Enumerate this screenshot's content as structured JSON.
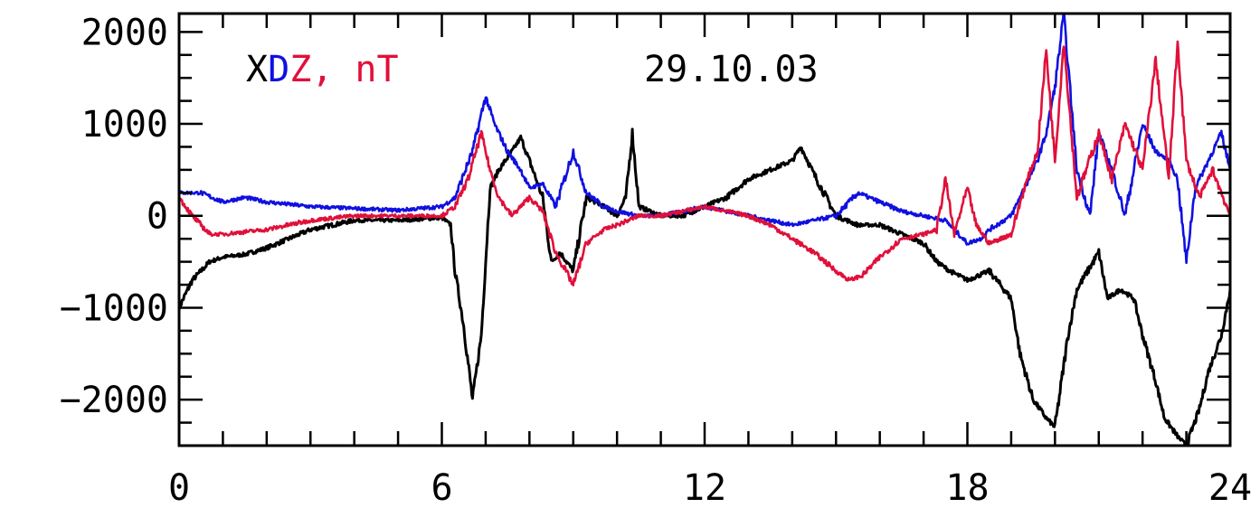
{
  "chart_data": {
    "type": "line",
    "title": "29.10.03",
    "legend_parts": [
      {
        "text": "X",
        "color": "#000000"
      },
      {
        "text": "D",
        "color": "#1010e0"
      },
      {
        "text": "Z, nT",
        "color": "#e0103a"
      }
    ],
    "xlim": [
      0,
      24
    ],
    "ylim": [
      -2500,
      2200
    ],
    "x_ticks": [
      0,
      6,
      12,
      18,
      24
    ],
    "x_tick_labels": [
      "0",
      "6",
      "12",
      "18",
      "24"
    ],
    "y_ticks": [
      2000,
      1000,
      0,
      -1000,
      -2000
    ],
    "y_tick_labels": [
      "2000",
      "1000",
      "0",
      "−1000",
      "−2000"
    ],
    "x_minor_step": 1,
    "y_minor_step": 250,
    "grid": false,
    "series": [
      {
        "color": "#000000",
        "x": [
          0,
          0.3,
          0.7,
          1,
          1.5,
          2,
          2.5,
          3,
          4,
          5,
          6,
          6.2,
          6.3,
          6.5,
          6.7,
          6.9,
          7.1,
          7.3,
          7.6,
          7.8,
          8,
          8.3,
          8.5,
          8.7,
          9,
          9.3,
          9.7,
          10,
          10.2,
          10.35,
          10.5,
          11,
          11.5,
          12,
          12.5,
          13,
          13.5,
          14,
          14.2,
          14.5,
          15,
          15.5,
          16,
          16.5,
          17,
          17.3,
          17.6,
          18,
          18.5,
          19,
          19.2,
          19.5,
          19.8,
          20,
          20.3,
          20.5,
          21,
          21.2,
          21.5,
          21.8,
          22,
          22.3,
          22.5,
          22.8,
          23,
          23.3,
          23.5,
          23.8,
          24
        ],
        "y": [
          -1000,
          -700,
          -500,
          -450,
          -420,
          -350,
          -250,
          -150,
          -50,
          -50,
          -20,
          -100,
          -600,
          -1200,
          -2000,
          -1300,
          300,
          500,
          700,
          850,
          600,
          200,
          -500,
          -400,
          -600,
          200,
          100,
          0,
          200,
          900,
          100,
          0,
          0,
          100,
          200,
          400,
          500,
          600,
          750,
          450,
          0,
          -100,
          -100,
          -200,
          -300,
          -500,
          -600,
          -700,
          -600,
          -900,
          -1500,
          -2000,
          -2200,
          -2300,
          -1300,
          -800,
          -400,
          -900,
          -800,
          -900,
          -1300,
          -1800,
          -2200,
          -2400,
          -2500,
          -2100,
          -1700,
          -1300,
          -800
        ]
      },
      {
        "color": "#1010e0",
        "x": [
          0,
          0.5,
          1,
          1.5,
          2,
          3,
          4,
          5,
          6,
          6.3,
          6.7,
          7,
          7.2,
          7.5,
          7.8,
          8,
          8.3,
          8.6,
          9,
          9.3,
          9.7,
          10,
          10.5,
          11,
          11.5,
          12,
          12.5,
          13,
          13.5,
          14,
          14.5,
          15,
          15.5,
          16,
          16.5,
          17,
          17.5,
          17.8,
          18,
          18.3,
          18.5,
          19,
          19.3,
          19.6,
          19.8,
          20,
          20.2,
          20.5,
          20.8,
          21,
          21.3,
          21.6,
          22,
          22.3,
          22.6,
          22.8,
          23,
          23.2,
          23.5,
          23.8,
          24
        ],
        "y": [
          250,
          250,
          150,
          200,
          150,
          100,
          80,
          60,
          100,
          200,
          700,
          1300,
          1000,
          700,
          500,
          300,
          350,
          100,
          700,
          250,
          100,
          50,
          0,
          0,
          50,
          100,
          50,
          0,
          -50,
          -100,
          -50,
          0,
          250,
          150,
          50,
          0,
          -50,
          -200,
          -300,
          -250,
          -150,
          0,
          300,
          600,
          900,
          1400,
          2200,
          500,
          0,
          900,
          500,
          0,
          1000,
          700,
          600,
          400,
          -500,
          300,
          600,
          900,
          500
        ]
      },
      {
        "color": "#e0103a",
        "x": [
          0,
          0.3,
          0.7,
          1,
          2,
          3,
          4,
          5,
          6,
          6.3,
          6.6,
          6.9,
          7.1,
          7.3,
          7.6,
          8,
          8.3,
          8.6,
          9,
          9.3,
          9.7,
          10,
          10.5,
          11,
          11.5,
          12,
          12.5,
          13,
          13.5,
          14,
          14.5,
          15,
          15.3,
          15.6,
          16,
          16.5,
          17,
          17.3,
          17.5,
          17.7,
          18,
          18.2,
          18.5,
          19,
          19.3,
          19.6,
          19.8,
          20,
          20.2,
          20.5,
          21,
          21.3,
          21.6,
          22,
          22.3,
          22.6,
          22.8,
          23,
          23.3,
          23.6,
          24
        ],
        "y": [
          200,
          0,
          -200,
          -200,
          -150,
          -50,
          0,
          0,
          0,
          100,
          400,
          900,
          500,
          200,
          0,
          200,
          50,
          -400,
          -750,
          -300,
          -150,
          -100,
          0,
          0,
          50,
          100,
          50,
          0,
          -100,
          -250,
          -400,
          -600,
          -700,
          -650,
          -450,
          -250,
          -200,
          -150,
          400,
          -200,
          300,
          -100,
          -300,
          -200,
          300,
          700,
          1800,
          600,
          1900,
          200,
          900,
          400,
          1000,
          500,
          1700,
          400,
          1900,
          600,
          200,
          500,
          0
        ]
      }
    ]
  }
}
